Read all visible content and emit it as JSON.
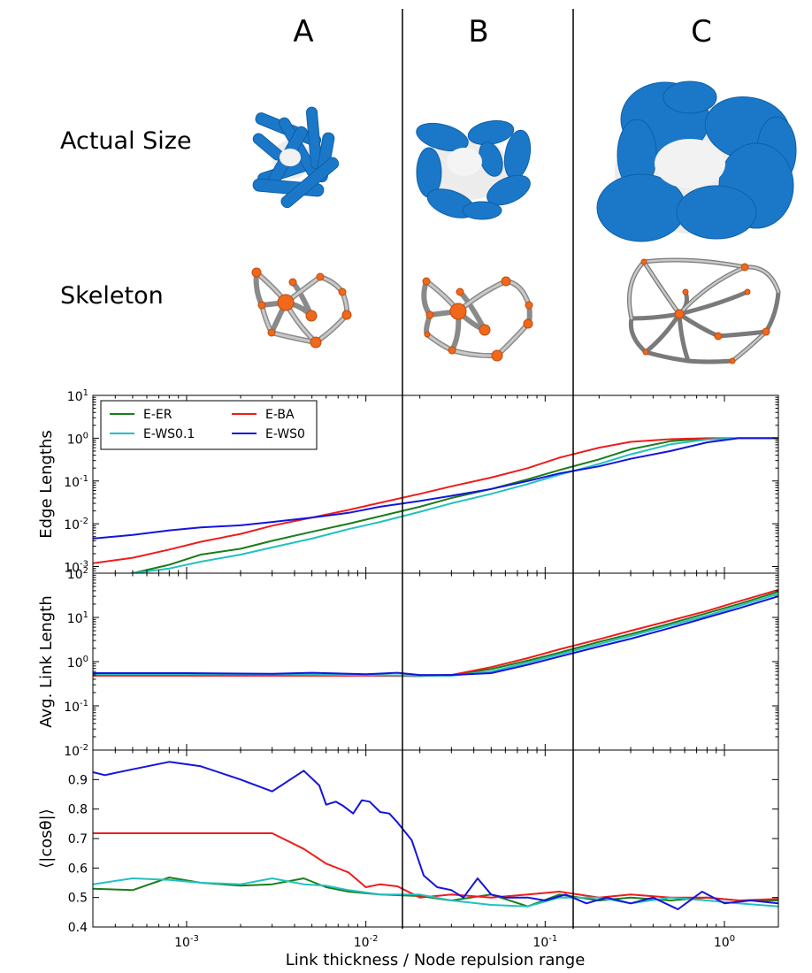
{
  "columns": [
    "A",
    "B",
    "C"
  ],
  "rows": [
    "Actual Size",
    "Skeleton"
  ],
  "colors": {
    "E-ER": "#1a7d1a",
    "E-BA": "#ee1c1c",
    "E-WS0.1": "#22c0c0",
    "E-WS0": "#1414dd",
    "link_blue": "#1b78c8",
    "node_white": "#ececec",
    "skeleton_gray": "#b8b8b8",
    "node_orange": "#f0681c"
  },
  "icons": [
    "network-actual-size-render",
    "network-skeleton-render"
  ],
  "xlabel": "Link thickness / Node repulsion range",
  "xtick_labels": [
    {
      "base": "10",
      "exp": "-3"
    },
    {
      "base": "10",
      "exp": "-2"
    },
    {
      "base": "10",
      "exp": "-1"
    },
    {
      "base": "10",
      "exp": "0"
    }
  ],
  "chart_data": [
    {
      "type": "line",
      "ylabel": "Edge Lengths",
      "xscale": "log",
      "yscale": "log",
      "xlim": [
        0.0003,
        2
      ],
      "ylim": [
        0.0007,
        10
      ],
      "ytick_labels": [
        {
          "base": "10",
          "exp": "1"
        },
        {
          "base": "10",
          "exp": "0"
        },
        {
          "base": "10",
          "exp": "-1"
        },
        {
          "base": "10",
          "exp": "-2"
        },
        {
          "base": "10",
          "exp": "-3"
        }
      ],
      "legend": "top-left",
      "series": [
        {
          "name": "E-ER",
          "x": [
            0.0003,
            0.0005,
            0.0008,
            0.0012,
            0.002,
            0.003,
            0.005,
            0.008,
            0.012,
            0.02,
            0.03,
            0.05,
            0.08,
            0.12,
            0.2,
            0.3,
            0.5,
            0.8,
            1.2,
            2
          ],
          "y": [
            0.0005,
            0.0007,
            0.0011,
            0.0019,
            0.0026,
            0.004,
            0.0065,
            0.01,
            0.015,
            0.025,
            0.04,
            0.065,
            0.11,
            0.18,
            0.32,
            0.55,
            0.85,
            0.98,
            1.0,
            1.0
          ]
        },
        {
          "name": "E-BA",
          "x": [
            0.0003,
            0.0005,
            0.0008,
            0.0012,
            0.002,
            0.003,
            0.005,
            0.008,
            0.012,
            0.02,
            0.03,
            0.05,
            0.08,
            0.12,
            0.2,
            0.3,
            0.5,
            0.8,
            1.2,
            2
          ],
          "y": [
            0.0012,
            0.0016,
            0.0025,
            0.0038,
            0.0058,
            0.009,
            0.014,
            0.021,
            0.031,
            0.05,
            0.075,
            0.12,
            0.2,
            0.35,
            0.6,
            0.82,
            0.95,
            1.0,
            1.0,
            1.0
          ]
        },
        {
          "name": "E-WS0.1",
          "x": [
            0.0005,
            0.0008,
            0.0012,
            0.002,
            0.003,
            0.005,
            0.008,
            0.012,
            0.02,
            0.03,
            0.05,
            0.08,
            0.12,
            0.2,
            0.3,
            0.5,
            0.8,
            1.2,
            2
          ],
          "y": [
            0.0007,
            0.0009,
            0.0013,
            0.0019,
            0.0028,
            0.0045,
            0.0075,
            0.011,
            0.019,
            0.03,
            0.05,
            0.085,
            0.14,
            0.25,
            0.42,
            0.72,
            0.93,
            1.0,
            1.0
          ]
        },
        {
          "name": "E-WS0",
          "x": [
            0.0003,
            0.0005,
            0.0008,
            0.0012,
            0.002,
            0.003,
            0.005,
            0.008,
            0.012,
            0.02,
            0.03,
            0.05,
            0.08,
            0.12,
            0.2,
            0.3,
            0.5,
            0.8,
            1.2,
            2
          ],
          "y": [
            0.0045,
            0.0055,
            0.007,
            0.0082,
            0.0092,
            0.011,
            0.014,
            0.018,
            0.025,
            0.034,
            0.045,
            0.065,
            0.1,
            0.15,
            0.22,
            0.33,
            0.5,
            0.8,
            1.0,
            1.0
          ]
        }
      ]
    },
    {
      "type": "line",
      "ylabel": "Avg. Link Length",
      "xscale": "log",
      "yscale": "log",
      "xlim": [
        0.0003,
        2
      ],
      "ylim": [
        0.01,
        100
      ],
      "ytick_labels": [
        {
          "base": "10",
          "exp": "2"
        },
        {
          "base": "10",
          "exp": "1"
        },
        {
          "base": "10",
          "exp": "0"
        },
        {
          "base": "10",
          "exp": "-1"
        },
        {
          "base": "10",
          "exp": "-2"
        }
      ],
      "series": [
        {
          "name": "E-ER",
          "x": [
            0.0003,
            0.001,
            0.003,
            0.01,
            0.02,
            0.03,
            0.05,
            0.08,
            0.12,
            0.2,
            0.3,
            0.5,
            0.8,
            1.2,
            2
          ],
          "y": [
            0.5,
            0.5,
            0.5,
            0.5,
            0.48,
            0.5,
            0.68,
            1.05,
            1.6,
            2.8,
            4.2,
            7.3,
            12.5,
            20,
            38
          ]
        },
        {
          "name": "E-BA",
          "x": [
            0.0003,
            0.001,
            0.003,
            0.01,
            0.02,
            0.03,
            0.05,
            0.08,
            0.12,
            0.2,
            0.3,
            0.5,
            0.8,
            1.2,
            2
          ],
          "y": [
            0.48,
            0.48,
            0.48,
            0.48,
            0.47,
            0.5,
            0.75,
            1.2,
            1.9,
            3.2,
            5.0,
            8.5,
            14,
            23,
            42
          ]
        },
        {
          "name": "E-WS0.1",
          "x": [
            0.0003,
            0.001,
            0.003,
            0.01,
            0.02,
            0.03,
            0.05,
            0.08,
            0.12,
            0.2,
            0.3,
            0.5,
            0.8,
            1.2,
            2
          ],
          "y": [
            0.52,
            0.52,
            0.52,
            0.5,
            0.48,
            0.48,
            0.6,
            0.95,
            1.45,
            2.5,
            3.8,
            6.6,
            11,
            18,
            34
          ]
        },
        {
          "name": "E-WS0",
          "x": [
            0.0003,
            0.001,
            0.003,
            0.005,
            0.01,
            0.015,
            0.02,
            0.03,
            0.05,
            0.08,
            0.12,
            0.2,
            0.3,
            0.5,
            0.8,
            1.2,
            2
          ],
          "y": [
            0.55,
            0.55,
            0.53,
            0.56,
            0.52,
            0.56,
            0.5,
            0.5,
            0.55,
            0.85,
            1.3,
            2.2,
            3.3,
            5.8,
            10,
            16,
            30
          ]
        }
      ]
    },
    {
      "type": "line",
      "ylabel": "⟨|cosθ|⟩",
      "xscale": "log",
      "yscale": "linear",
      "xlim": [
        0.0003,
        2
      ],
      "ylim": [
        0.4,
        1.0
      ],
      "yticks": [
        0.4,
        0.5,
        0.6,
        0.7,
        0.8,
        0.9
      ],
      "series": [
        {
          "name": "E-ER",
          "x": [
            0.0003,
            0.0005,
            0.0008,
            0.0012,
            0.002,
            0.003,
            0.0045,
            0.006,
            0.008,
            0.012,
            0.02,
            0.03,
            0.05,
            0.08,
            0.12,
            0.2,
            0.3,
            0.5,
            0.8,
            1.2,
            2
          ],
          "y": [
            0.53,
            0.525,
            0.568,
            0.55,
            0.54,
            0.545,
            0.565,
            0.535,
            0.52,
            0.51,
            0.505,
            0.49,
            0.51,
            0.47,
            0.51,
            0.49,
            0.5,
            0.49,
            0.5,
            0.49,
            0.49
          ]
        },
        {
          "name": "E-BA",
          "x": [
            0.0003,
            0.0005,
            0.0008,
            0.0012,
            0.002,
            0.003,
            0.0045,
            0.006,
            0.008,
            0.01,
            0.012,
            0.015,
            0.02,
            0.03,
            0.05,
            0.08,
            0.12,
            0.2,
            0.3,
            0.5,
            0.8,
            1.2,
            2
          ],
          "y": [
            0.718,
            0.718,
            0.718,
            0.718,
            0.718,
            0.718,
            0.665,
            0.615,
            0.585,
            0.535,
            0.545,
            0.538,
            0.5,
            0.51,
            0.5,
            0.51,
            0.52,
            0.5,
            0.51,
            0.5,
            0.5,
            0.49,
            0.495
          ]
        },
        {
          "name": "E-WS0.1",
          "x": [
            0.0003,
            0.0005,
            0.0008,
            0.0012,
            0.002,
            0.003,
            0.0045,
            0.006,
            0.008,
            0.012,
            0.02,
            0.03,
            0.05,
            0.08,
            0.12,
            0.2,
            0.3,
            0.5,
            0.8,
            1.2,
            2
          ],
          "y": [
            0.545,
            0.565,
            0.56,
            0.55,
            0.545,
            0.565,
            0.545,
            0.54,
            0.525,
            0.51,
            0.51,
            0.49,
            0.475,
            0.47,
            0.5,
            0.5,
            0.48,
            0.5,
            0.49,
            0.48,
            0.47
          ]
        },
        {
          "name": "E-WS0",
          "x": [
            0.0003,
            0.00035,
            0.0005,
            0.0008,
            0.0012,
            0.002,
            0.003,
            0.0045,
            0.0055,
            0.006,
            0.0068,
            0.0075,
            0.0085,
            0.0095,
            0.0105,
            0.012,
            0.0135,
            0.015,
            0.018,
            0.021,
            0.025,
            0.03,
            0.035,
            0.042,
            0.05,
            0.06,
            0.08,
            0.1,
            0.13,
            0.17,
            0.22,
            0.3,
            0.4,
            0.55,
            0.75,
            1.0,
            1.4,
            2
          ],
          "y": [
            0.925,
            0.915,
            0.935,
            0.96,
            0.945,
            0.9,
            0.86,
            0.93,
            0.88,
            0.815,
            0.825,
            0.81,
            0.785,
            0.83,
            0.825,
            0.79,
            0.785,
            0.755,
            0.695,
            0.575,
            0.535,
            0.525,
            0.5,
            0.565,
            0.51,
            0.5,
            0.5,
            0.49,
            0.51,
            0.48,
            0.5,
            0.48,
            0.5,
            0.46,
            0.52,
            0.48,
            0.49,
            0.48
          ]
        }
      ]
    }
  ]
}
